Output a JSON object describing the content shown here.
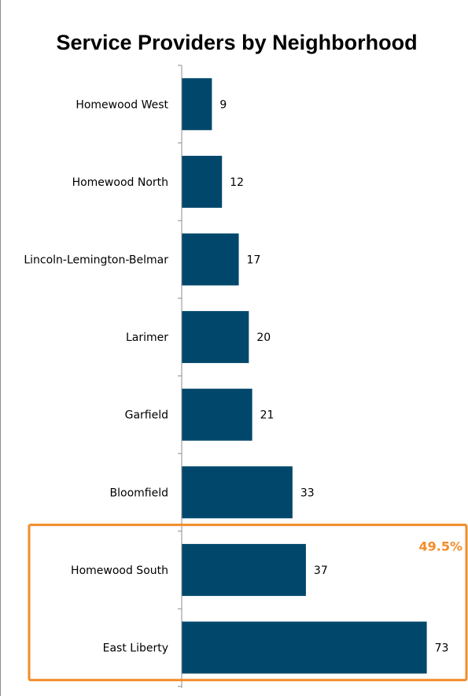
{
  "chart_data": {
    "type": "bar",
    "orientation": "horizontal",
    "title": "Service Providers by Neighborhood",
    "categories": [
      "Homewood West",
      "Homewood North",
      "Lincoln-Lemington-Belmar",
      "Larimer",
      "Garfield",
      "Bloomfield",
      "Homewood South",
      "East Liberty"
    ],
    "values": [
      9,
      12,
      17,
      20,
      21,
      33,
      37,
      73
    ],
    "xlim": [
      0,
      82
    ],
    "grid": false,
    "legend": "none",
    "bar_color": "#00476b",
    "data_labels": true
  },
  "highlight": {
    "label": "49.5%",
    "categories": [
      "Homewood South",
      "East Liberty"
    ],
    "color": "#f28c28"
  }
}
